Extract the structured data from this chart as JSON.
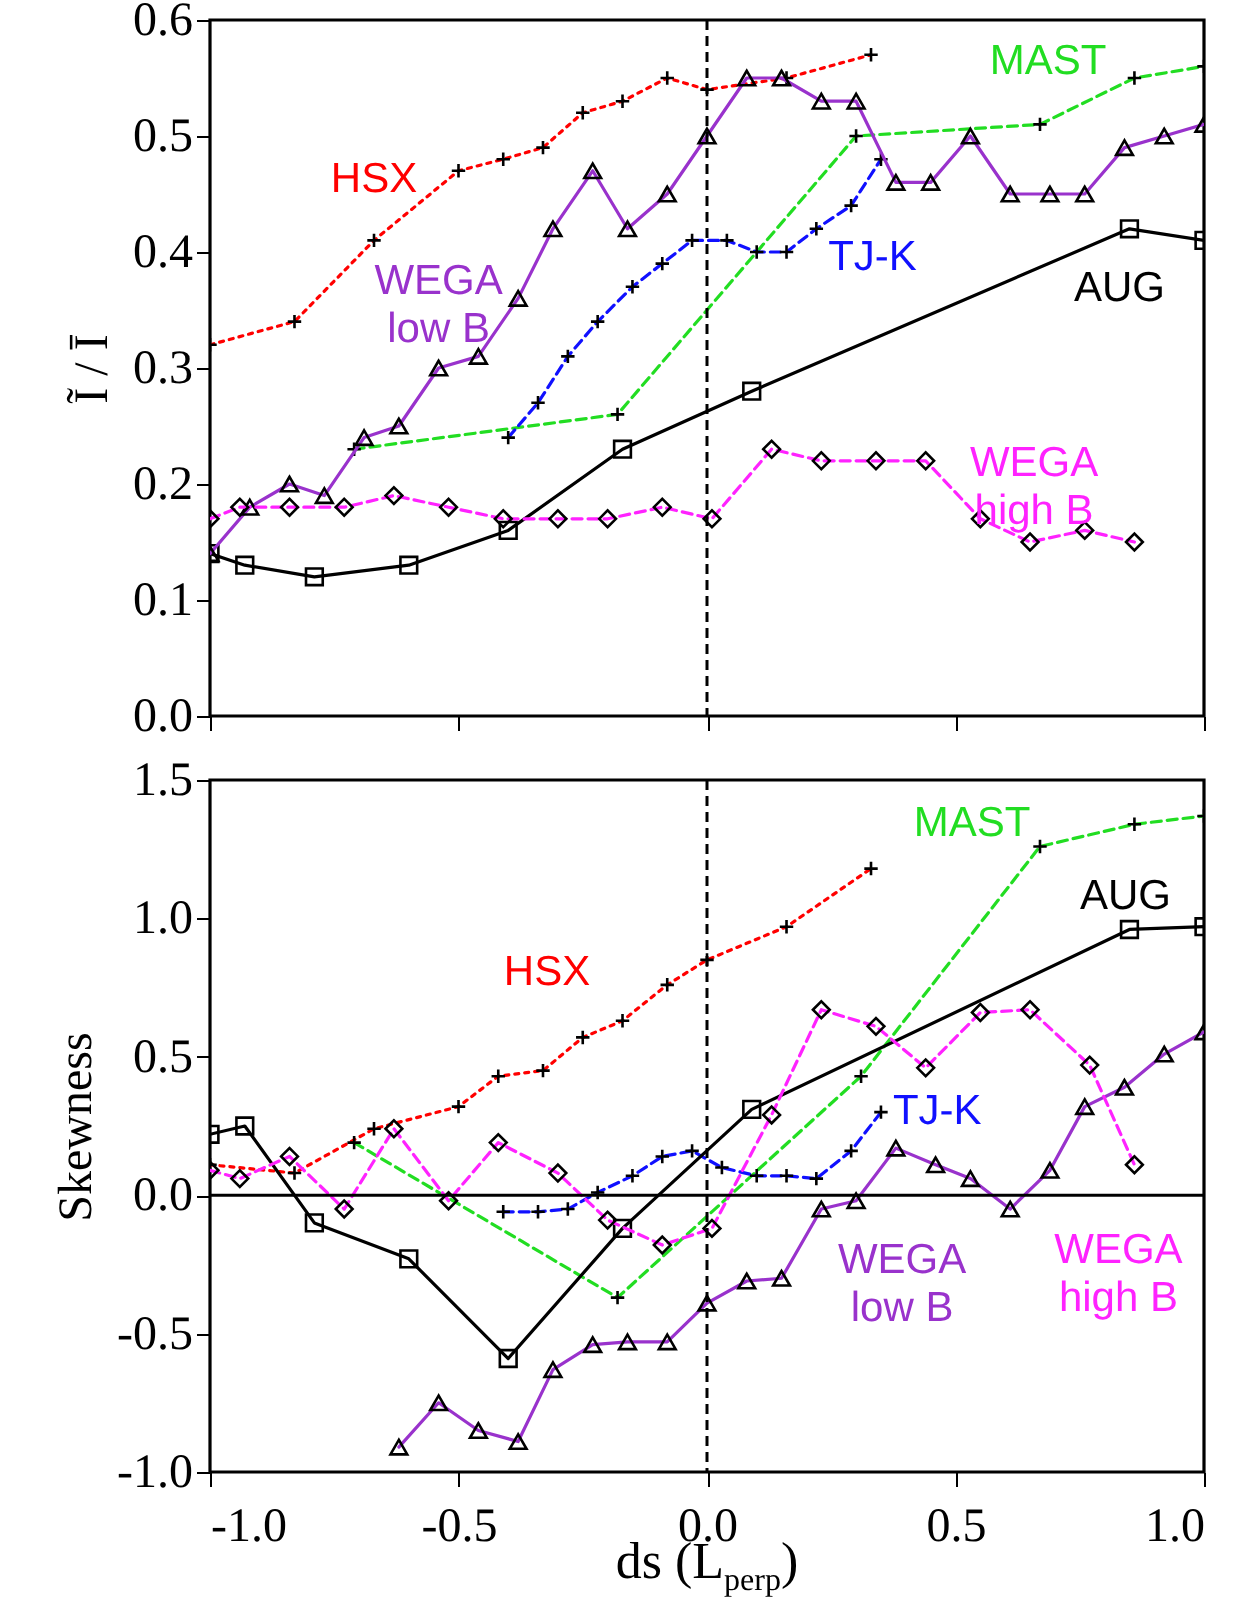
{
  "chart_data": [
    {
      "type": "line",
      "ylabel": "Ĩ / Ī",
      "xlim": [
        -1,
        1
      ],
      "xticks": [
        {
          "value": -1,
          "label": null
        },
        {
          "value": -0.5,
          "label": null
        },
        {
          "value": 0,
          "label": null
        },
        {
          "value": 0.5,
          "label": null
        },
        {
          "value": 1,
          "label": null
        }
      ],
      "ylim": [
        0,
        0.6
      ],
      "yticks": [
        {
          "value": 0,
          "label": "0.0"
        },
        {
          "value": 0.1,
          "label": "0.1"
        },
        {
          "value": 0.2,
          "label": "0.2"
        },
        {
          "value": 0.3,
          "label": "0.3"
        },
        {
          "value": 0.4,
          "label": "0.4"
        },
        {
          "value": 0.5,
          "label": "0.5"
        },
        {
          "value": 0.6,
          "label": "0.6"
        }
      ],
      "tick_labels": "y",
      "ref_lines": [
        {
          "axis": "x",
          "value": 0,
          "line_style": "dashed",
          "color": "#000000"
        }
      ],
      "series": [
        {
          "name": "HSX",
          "color": "#ff0000",
          "marker": "cross",
          "line_style": "dotted",
          "x": [
            -1.0,
            -0.83,
            -0.67,
            -0.5,
            -0.41,
            -0.33,
            -0.25,
            -0.17,
            -0.08,
            0.0,
            0.16,
            0.33
          ],
          "values": [
            0.32,
            0.34,
            0.41,
            0.47,
            0.48,
            0.49,
            0.52,
            0.53,
            0.55,
            0.54,
            0.55,
            0.57
          ]
        },
        {
          "name": "MAST",
          "color": "#22dd22",
          "marker": "cross",
          "line_style": "dashed",
          "x": [
            -0.71,
            -0.18,
            0.3,
            0.67,
            0.86,
            1.0
          ],
          "values": [
            0.23,
            0.26,
            0.5,
            0.51,
            0.55,
            0.56
          ]
        },
        {
          "name": "TJ-K",
          "color": "#1010ff",
          "marker": "cross",
          "line_style": "dashed",
          "x": [
            -0.4,
            -0.34,
            -0.28,
            -0.22,
            -0.15,
            -0.09,
            -0.03,
            0.04,
            0.1,
            0.16,
            0.22,
            0.29,
            0.35
          ],
          "values": [
            0.24,
            0.27,
            0.31,
            0.34,
            0.37,
            0.39,
            0.41,
            0.41,
            0.4,
            0.4,
            0.42,
            0.44,
            0.48
          ]
        },
        {
          "name": "AUG",
          "color": "#000000",
          "marker": "square",
          "line_style": "solid",
          "x": [
            -1.0,
            -0.93,
            -0.79,
            -0.6,
            -0.4,
            -0.17,
            0.09,
            0.85,
            1.0
          ],
          "values": [
            0.14,
            0.13,
            0.12,
            0.13,
            0.16,
            0.23,
            0.28,
            0.42,
            0.41
          ]
        },
        {
          "name": "WEGA low B",
          "color": "#9932cc",
          "marker": "triangle",
          "line_style": "solid",
          "x": [
            -1.0,
            -0.92,
            -0.84,
            -0.77,
            -0.69,
            -0.62,
            -0.54,
            -0.46,
            -0.38,
            -0.31,
            -0.23,
            -0.16,
            -0.08,
            0.0,
            0.08,
            0.15,
            0.23,
            0.3,
            0.38,
            0.45,
            0.53,
            0.61,
            0.69,
            0.76,
            0.84,
            0.92,
            1.0
          ],
          "values": [
            0.14,
            0.18,
            0.2,
            0.19,
            0.24,
            0.25,
            0.3,
            0.31,
            0.36,
            0.42,
            0.47,
            0.42,
            0.45,
            0.5,
            0.55,
            0.55,
            0.53,
            0.53,
            0.46,
            0.46,
            0.5,
            0.45,
            0.45,
            0.45,
            0.49,
            0.5,
            0.51
          ]
        },
        {
          "name": "WEGA high B",
          "color": "#ff22ff",
          "marker": "diamond",
          "line_style": "dashed",
          "x": [
            -1.0,
            -0.94,
            -0.84,
            -0.73,
            -0.63,
            -0.52,
            -0.41,
            -0.3,
            -0.2,
            -0.09,
            0.01,
            0.13,
            0.23,
            0.34,
            0.44,
            0.55,
            0.65,
            0.76,
            0.86
          ],
          "values": [
            0.17,
            0.18,
            0.18,
            0.18,
            0.19,
            0.18,
            0.17,
            0.17,
            0.17,
            0.18,
            0.17,
            0.23,
            0.22,
            0.22,
            0.22,
            0.17,
            0.15,
            0.16,
            0.15
          ]
        }
      ]
    },
    {
      "type": "line",
      "ylabel": "Skewness",
      "xlabel": "ds (L$_{perp}$)",
      "xlim": [
        -1,
        1
      ],
      "xticks": [
        {
          "value": -1,
          "label": "-1.0"
        },
        {
          "value": -0.5,
          "label": "-0.5"
        },
        {
          "value": 0,
          "label": "0.0"
        },
        {
          "value": 0.5,
          "label": "0.5"
        },
        {
          "value": 1,
          "label": "1.0"
        }
      ],
      "ylim": [
        -1,
        1.5
      ],
      "yticks": [
        {
          "value": -1,
          "label": "-1.0"
        },
        {
          "value": -0.5,
          "label": "-0.5"
        },
        {
          "value": 0,
          "label": "0.0"
        },
        {
          "value": 0.5,
          "label": "0.5"
        },
        {
          "value": 1,
          "label": "1.0"
        },
        {
          "value": 1.5,
          "label": "1.5"
        }
      ],
      "ref_lines": [
        {
          "axis": "x",
          "value": 0,
          "line_style": "dashed",
          "color": "#000000"
        },
        {
          "axis": "y",
          "value": 0,
          "line_style": "solid",
          "color": "#000000"
        }
      ],
      "series": [
        {
          "name": "HSX",
          "color": "#ff0000",
          "marker": "cross",
          "line_style": "dotted",
          "x": [
            -1.0,
            -0.83,
            -0.67,
            -0.5,
            -0.42,
            -0.33,
            -0.25,
            -0.17,
            -0.08,
            0.0,
            0.16,
            0.33
          ],
          "values": [
            0.11,
            0.08,
            0.24,
            0.32,
            0.43,
            0.45,
            0.57,
            0.63,
            0.76,
            0.85,
            0.97,
            1.18
          ]
        },
        {
          "name": "MAST",
          "color": "#22dd22",
          "marker": "cross",
          "line_style": "dashed",
          "x": [
            -0.71,
            -0.18,
            0.31,
            0.67,
            0.86,
            1.0
          ],
          "values": [
            0.19,
            -0.37,
            0.43,
            1.26,
            1.34,
            1.37
          ]
        },
        {
          "name": "TJ-K",
          "color": "#1010ff",
          "marker": "cross",
          "line_style": "dashed",
          "x": [
            -0.41,
            -0.34,
            -0.28,
            -0.22,
            -0.15,
            -0.09,
            -0.03,
            0.03,
            0.1,
            0.16,
            0.22,
            0.29,
            0.35
          ],
          "values": [
            -0.06,
            -0.06,
            -0.05,
            0.01,
            0.07,
            0.14,
            0.16,
            0.1,
            0.07,
            0.07,
            0.06,
            0.16,
            0.3
          ]
        },
        {
          "name": "AUG",
          "color": "#000000",
          "marker": "square",
          "line_style": "solid",
          "x": [
            -1.0,
            -0.93,
            -0.79,
            -0.6,
            -0.4,
            -0.17,
            0.09,
            0.85,
            1.0
          ],
          "values": [
            0.22,
            0.25,
            -0.1,
            -0.23,
            -0.59,
            -0.12,
            0.31,
            0.96,
            0.97
          ]
        },
        {
          "name": "WEGA low B",
          "color": "#9932cc",
          "marker": "triangle",
          "line_style": "solid",
          "x": [
            -0.62,
            -0.54,
            -0.46,
            -0.38,
            -0.31,
            -0.23,
            -0.16,
            -0.08,
            0.0,
            0.08,
            0.15,
            0.23,
            0.3,
            0.38,
            0.46,
            0.53,
            0.61,
            0.69,
            0.76,
            0.84,
            0.92,
            1.0
          ],
          "values": [
            -0.91,
            -0.75,
            -0.85,
            -0.89,
            -0.63,
            -0.54,
            -0.53,
            -0.53,
            -0.39,
            -0.31,
            -0.3,
            -0.05,
            -0.02,
            0.17,
            0.11,
            0.06,
            -0.05,
            0.09,
            0.32,
            0.39,
            0.51,
            0.59
          ]
        },
        {
          "name": "WEGA high B",
          "color": "#ff22ff",
          "marker": "diamond",
          "line_style": "dashed",
          "x": [
            -1.0,
            -0.94,
            -0.84,
            -0.73,
            -0.63,
            -0.52,
            -0.42,
            -0.3,
            -0.2,
            -0.09,
            0.01,
            0.13,
            0.23,
            0.34,
            0.44,
            0.55,
            0.65,
            0.77,
            0.86
          ],
          "values": [
            0.09,
            0.06,
            0.14,
            -0.05,
            0.24,
            -0.02,
            0.19,
            0.08,
            -0.09,
            -0.18,
            -0.12,
            0.29,
            0.67,
            0.61,
            0.46,
            0.66,
            0.67,
            0.47,
            0.11
          ]
        }
      ]
    }
  ]
}
